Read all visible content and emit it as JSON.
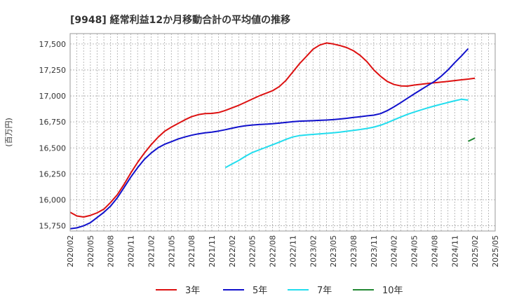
{
  "chart_data": {
    "type": "line",
    "title": "[9948]  経常利益12か月移動合計の平均値の推移",
    "ylabel": "(百万円)",
    "xlabel": "",
    "ylim": [
      15700,
      17600
    ],
    "yticks": [
      15750,
      16000,
      16250,
      16500,
      16750,
      17000,
      17250,
      17500
    ],
    "ytick_labels": [
      "15,750",
      "16,000",
      "16,250",
      "16,500",
      "16,750",
      "17,000",
      "17,250",
      "17,500"
    ],
    "xlim": [
      "2020-02",
      "2025-05"
    ],
    "xtick_labels": [
      "2020/02",
      "2020/05",
      "2020/08",
      "2020/11",
      "2021/02",
      "2021/05",
      "2021/08",
      "2021/11",
      "2022/02",
      "2022/05",
      "2022/08",
      "2022/11",
      "2023/02",
      "2023/05",
      "2023/08",
      "2023/11",
      "2024/02",
      "2024/05",
      "2024/08",
      "2024/11",
      "2025/02",
      "2025/05"
    ],
    "grid": true,
    "legend_position": "bottom",
    "series": [
      {
        "name": "3年",
        "color": "#dd1111",
        "points": [
          [
            "2020-02",
            15880
          ],
          [
            "2020-03",
            15845
          ],
          [
            "2020-04",
            15835
          ],
          [
            "2020-05",
            15850
          ],
          [
            "2020-06",
            15875
          ],
          [
            "2020-07",
            15910
          ],
          [
            "2020-08",
            15975
          ],
          [
            "2020-09",
            16050
          ],
          [
            "2020-10",
            16150
          ],
          [
            "2020-11",
            16260
          ],
          [
            "2020-12",
            16360
          ],
          [
            "2021-01",
            16450
          ],
          [
            "2021-02",
            16530
          ],
          [
            "2021-03",
            16600
          ],
          [
            "2021-04",
            16660
          ],
          [
            "2021-05",
            16700
          ],
          [
            "2021-06",
            16735
          ],
          [
            "2021-07",
            16770
          ],
          [
            "2021-08",
            16800
          ],
          [
            "2021-09",
            16820
          ],
          [
            "2021-10",
            16830
          ],
          [
            "2021-11",
            16832
          ],
          [
            "2021-12",
            16840
          ],
          [
            "2022-01",
            16860
          ],
          [
            "2022-02",
            16885
          ],
          [
            "2022-03",
            16910
          ],
          [
            "2022-04",
            16940
          ],
          [
            "2022-05",
            16970
          ],
          [
            "2022-06",
            17000
          ],
          [
            "2022-07",
            17025
          ],
          [
            "2022-08",
            17050
          ],
          [
            "2022-09",
            17090
          ],
          [
            "2022-10",
            17150
          ],
          [
            "2022-11",
            17230
          ],
          [
            "2022-12",
            17310
          ],
          [
            "2023-01",
            17380
          ],
          [
            "2023-02",
            17450
          ],
          [
            "2023-03",
            17490
          ],
          [
            "2023-04",
            17510
          ],
          [
            "2023-05",
            17500
          ],
          [
            "2023-06",
            17485
          ],
          [
            "2023-07",
            17465
          ],
          [
            "2023-08",
            17435
          ],
          [
            "2023-09",
            17390
          ],
          [
            "2023-10",
            17330
          ],
          [
            "2023-11",
            17250
          ],
          [
            "2023-12",
            17190
          ],
          [
            "2024-01",
            17140
          ],
          [
            "2024-02",
            17110
          ],
          [
            "2024-03",
            17097
          ],
          [
            "2024-04",
            17095
          ],
          [
            "2024-05",
            17105
          ],
          [
            "2024-06",
            17112
          ],
          [
            "2024-07",
            17120
          ],
          [
            "2024-08",
            17127
          ],
          [
            "2024-09",
            17133
          ],
          [
            "2024-10",
            17140
          ],
          [
            "2024-11",
            17148
          ],
          [
            "2024-12",
            17155
          ],
          [
            "2025-01",
            17162
          ],
          [
            "2025-02",
            17170
          ]
        ]
      },
      {
        "name": "5年",
        "color": "#1111cc",
        "points": [
          [
            "2020-02",
            15722
          ],
          [
            "2020-03",
            15730
          ],
          [
            "2020-04",
            15750
          ],
          [
            "2020-05",
            15780
          ],
          [
            "2020-06",
            15830
          ],
          [
            "2020-07",
            15880
          ],
          [
            "2020-08",
            15940
          ],
          [
            "2020-09",
            16020
          ],
          [
            "2020-10",
            16120
          ],
          [
            "2020-11",
            16220
          ],
          [
            "2020-12",
            16310
          ],
          [
            "2021-01",
            16390
          ],
          [
            "2021-02",
            16450
          ],
          [
            "2021-03",
            16500
          ],
          [
            "2021-04",
            16535
          ],
          [
            "2021-05",
            16560
          ],
          [
            "2021-06",
            16585
          ],
          [
            "2021-07",
            16605
          ],
          [
            "2021-08",
            16622
          ],
          [
            "2021-09",
            16635
          ],
          [
            "2021-10",
            16645
          ],
          [
            "2021-11",
            16652
          ],
          [
            "2021-12",
            16662
          ],
          [
            "2022-01",
            16675
          ],
          [
            "2022-02",
            16690
          ],
          [
            "2022-03",
            16703
          ],
          [
            "2022-04",
            16713
          ],
          [
            "2022-05",
            16720
          ],
          [
            "2022-06",
            16725
          ],
          [
            "2022-07",
            16728
          ],
          [
            "2022-08",
            16732
          ],
          [
            "2022-09",
            16738
          ],
          [
            "2022-10",
            16745
          ],
          [
            "2022-11",
            16752
          ],
          [
            "2022-12",
            16757
          ],
          [
            "2023-01",
            16760
          ],
          [
            "2023-02",
            16762
          ],
          [
            "2023-03",
            16765
          ],
          [
            "2023-04",
            16768
          ],
          [
            "2023-05",
            16772
          ],
          [
            "2023-06",
            16778
          ],
          [
            "2023-07",
            16785
          ],
          [
            "2023-08",
            16793
          ],
          [
            "2023-09",
            16800
          ],
          [
            "2023-10",
            16808
          ],
          [
            "2023-11",
            16815
          ],
          [
            "2023-12",
            16830
          ],
          [
            "2024-01",
            16858
          ],
          [
            "2024-02",
            16895
          ],
          [
            "2024-03",
            16935
          ],
          [
            "2024-04",
            16978
          ],
          [
            "2024-05",
            17020
          ],
          [
            "2024-06",
            17060
          ],
          [
            "2024-07",
            17100
          ],
          [
            "2024-08",
            17140
          ],
          [
            "2024-09",
            17190
          ],
          [
            "2024-10",
            17250
          ],
          [
            "2024-11",
            17320
          ],
          [
            "2024-12",
            17385
          ],
          [
            "2025-01",
            17455
          ]
        ]
      },
      {
        "name": "7年",
        "color": "#22ddee",
        "points": [
          [
            "2022-01",
            16310
          ],
          [
            "2022-02",
            16345
          ],
          [
            "2022-03",
            16380
          ],
          [
            "2022-04",
            16420
          ],
          [
            "2022-05",
            16455
          ],
          [
            "2022-06",
            16480
          ],
          [
            "2022-07",
            16505
          ],
          [
            "2022-08",
            16530
          ],
          [
            "2022-09",
            16555
          ],
          [
            "2022-10",
            16582
          ],
          [
            "2022-11",
            16605
          ],
          [
            "2022-12",
            16618
          ],
          [
            "2023-01",
            16625
          ],
          [
            "2023-02",
            16630
          ],
          [
            "2023-03",
            16635
          ],
          [
            "2023-04",
            16640
          ],
          [
            "2023-05",
            16645
          ],
          [
            "2023-06",
            16652
          ],
          [
            "2023-07",
            16660
          ],
          [
            "2023-08",
            16668
          ],
          [
            "2023-09",
            16677
          ],
          [
            "2023-10",
            16687
          ],
          [
            "2023-11",
            16700
          ],
          [
            "2023-12",
            16718
          ],
          [
            "2024-01",
            16742
          ],
          [
            "2024-02",
            16770
          ],
          [
            "2024-03",
            16797
          ],
          [
            "2024-04",
            16823
          ],
          [
            "2024-05",
            16845
          ],
          [
            "2024-06",
            16865
          ],
          [
            "2024-07",
            16885
          ],
          [
            "2024-08",
            16903
          ],
          [
            "2024-09",
            16920
          ],
          [
            "2024-10",
            16937
          ],
          [
            "2024-11",
            16953
          ],
          [
            "2024-12",
            16968
          ],
          [
            "2025-01",
            16960
          ]
        ]
      },
      {
        "name": "10年",
        "color": "#228833",
        "points": [
          [
            "2025-01",
            16563
          ],
          [
            "2025-02",
            16595
          ]
        ]
      }
    ]
  }
}
